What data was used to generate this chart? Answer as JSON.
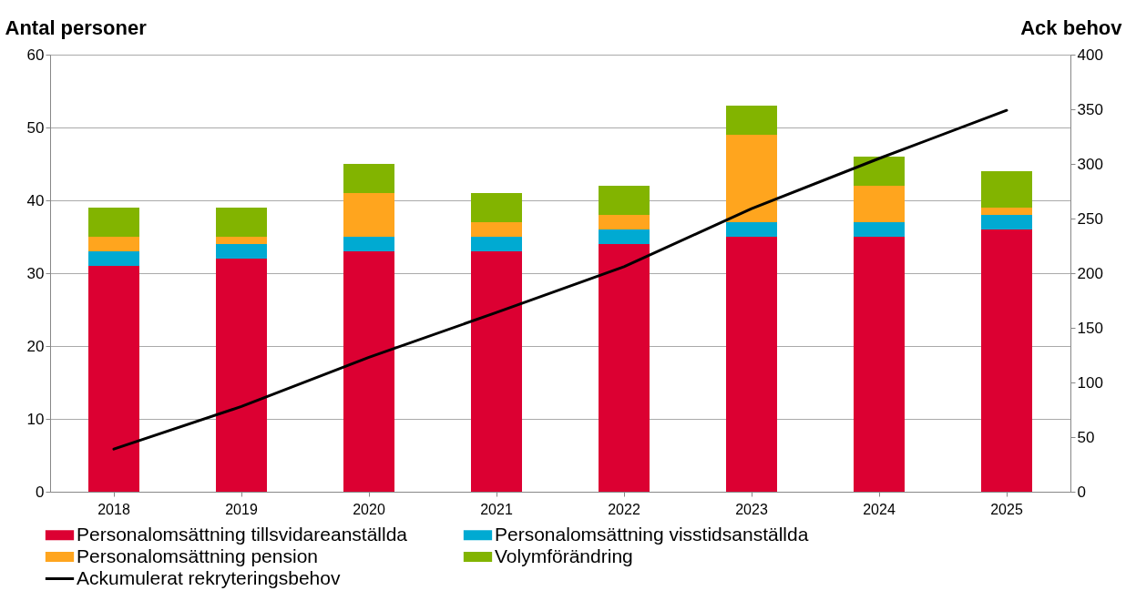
{
  "chart_data": {
    "type": "bar",
    "stacked": true,
    "ylabel": "Antal personer",
    "y2label": "Ack behov",
    "categories": [
      "2018",
      "2019",
      "2020",
      "2021",
      "2022",
      "2023",
      "2024",
      "2025"
    ],
    "series": [
      {
        "name": "Personalomsättning tillsvidareanställda",
        "color": "#dc0032",
        "values": [
          31,
          32,
          33,
          33,
          34,
          35,
          35,
          36
        ]
      },
      {
        "name": "Personalomsättning visstidsanställda",
        "color": "#00aad2",
        "values": [
          2,
          2,
          2,
          2,
          2,
          2,
          2,
          2
        ]
      },
      {
        "name": "Personalomsättning pension",
        "color": "#ffa51e",
        "values": [
          2,
          1,
          6,
          2,
          2,
          12,
          5,
          1
        ]
      },
      {
        "name": "Volymförändring",
        "color": "#82b400",
        "values": [
          4,
          4,
          4,
          4,
          4,
          4,
          4,
          5
        ]
      },
      {
        "name": "Ackumulerat rekryteringsbehov",
        "color": "#000000",
        "type": "line",
        "axis": "y2",
        "values": [
          39,
          78,
          123,
          164,
          206,
          259,
          305,
          349
        ]
      }
    ],
    "ylim": [
      0,
      60
    ],
    "yticks": [
      0,
      10,
      20,
      30,
      40,
      50,
      60
    ],
    "y2lim": [
      0,
      400
    ],
    "y2ticks": [
      0,
      50,
      100,
      150,
      200,
      250,
      300,
      350,
      400
    ],
    "grid": "y",
    "legend": "bottom"
  }
}
